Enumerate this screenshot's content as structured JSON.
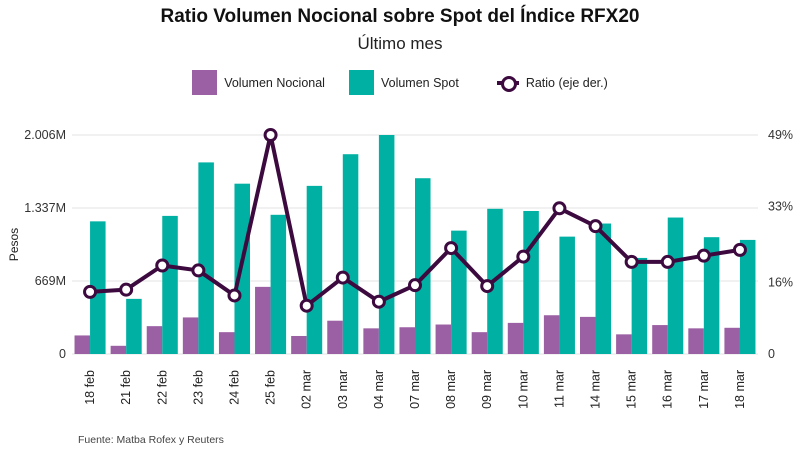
{
  "title": "Ratio Volumen Nocional sobre Spot del Índice RFX20",
  "subtitle": "Último mes",
  "source": "Fuente: Matba Rofex y Reuters",
  "colors": {
    "nocional": "#9b5fa3",
    "spot": "#00b0a3",
    "ratio": "#3d0a3f",
    "grid": "#e3e3e3"
  },
  "legend": {
    "nocional": "Volumen Nocional",
    "spot": "Volumen Spot",
    "ratio": "Ratio (eje der.)"
  },
  "chart_data": {
    "type": "bar",
    "categories": [
      "18 feb",
      "21 feb",
      "22 feb",
      "23 feb",
      "24 feb",
      "25 feb",
      "02 mar",
      "03 mar",
      "04 mar",
      "07 mar",
      "08 mar",
      "09 mar",
      "10 mar",
      "11 mar",
      "14 mar",
      "15 mar",
      "16 mar",
      "17 mar",
      "18 mar"
    ],
    "series": [
      {
        "name": "Volumen Nocional",
        "kind": "bar",
        "axis": "left",
        "values": [
          170,
          75,
          255,
          335,
          200,
          615,
          165,
          305,
          235,
          245,
          270,
          200,
          285,
          355,
          340,
          180,
          265,
          235,
          240
        ]
      },
      {
        "name": "Volumen Spot",
        "kind": "bar",
        "axis": "left",
        "values": [
          1215,
          505,
          1265,
          1755,
          1560,
          1275,
          1540,
          1830,
          2006,
          1610,
          1130,
          1330,
          1310,
          1075,
          1195,
          880,
          1250,
          1070,
          1045
        ]
      },
      {
        "name": "Ratio (eje der.)",
        "kind": "line",
        "axis": "right",
        "values": [
          13.9,
          14.4,
          19.8,
          18.7,
          13.1,
          49,
          10.8,
          17.1,
          11.7,
          15.4,
          23.7,
          15.2,
          21.8,
          32.6,
          28.6,
          20.6,
          20.6,
          22.0,
          23.3
        ]
      }
    ],
    "ylabel": "Pesos",
    "y_left": {
      "ticks": [
        0,
        669,
        1337,
        2006
      ],
      "tick_labels": [
        "0",
        "669M",
        "1.337M",
        "2.006M"
      ],
      "range": [
        0,
        2006
      ]
    },
    "y_right": {
      "ticks": [
        0,
        16,
        33,
        49
      ],
      "tick_labels": [
        "0",
        "16%",
        "33%",
        "49%"
      ],
      "range": [
        0,
        49
      ]
    },
    "grid": true,
    "legend_position": "top-center"
  }
}
